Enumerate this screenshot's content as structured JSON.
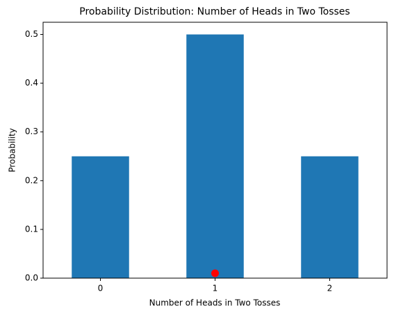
{
  "chart_data": {
    "type": "bar",
    "title": "Probability Distribution: Number of Heads in Two Tosses",
    "xlabel": "Number of Heads in Two Tosses",
    "ylabel": "Probability",
    "x": [
      0,
      1,
      2
    ],
    "values": [
      0.25,
      0.5,
      0.25
    ],
    "color": "#1f77b4",
    "xlim": [
      -0.5,
      2.5
    ],
    "xticks": [
      0,
      1,
      2
    ],
    "ylim": [
      0,
      0.525
    ],
    "yticks": [
      {
        "value": 0,
        "label": "0.0"
      },
      {
        "value": 0.1,
        "label": "0.1"
      },
      {
        "value": 0.2,
        "label": "0.2"
      },
      {
        "value": 0.3,
        "label": "0.3"
      },
      {
        "value": 0.4,
        "label": "0.4"
      },
      {
        "value": 0.5,
        "label": "0.5"
      }
    ],
    "points": {
      "x": [
        1
      ],
      "y": [
        0.01
      ],
      "color": "red"
    },
    "grid": false
  }
}
